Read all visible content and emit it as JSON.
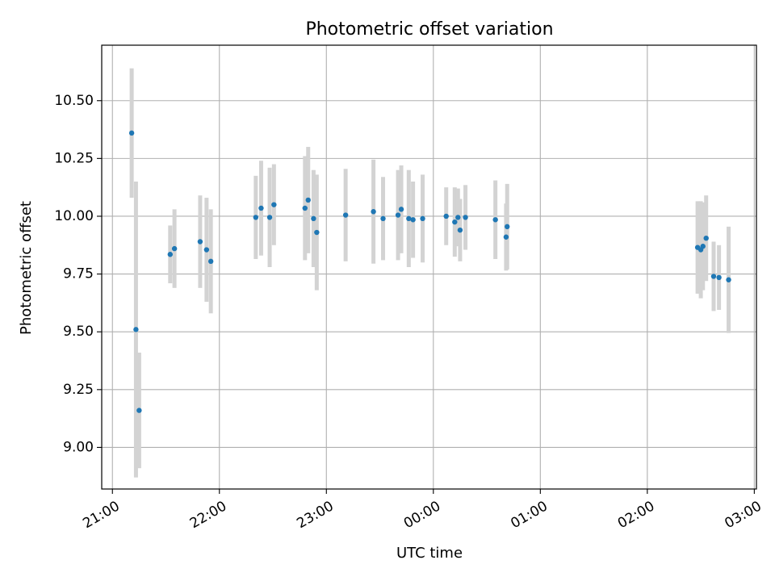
{
  "chart_data": {
    "type": "scatter",
    "title": "Photometric offset variation",
    "xlabel": "UTC time",
    "ylabel": "Photometric offset",
    "x_ticks": [
      "21:00",
      "22:00",
      "23:00",
      "00:00",
      "01:00",
      "02:00",
      "03:00"
    ],
    "x_tick_hours": [
      0,
      1,
      2,
      3,
      4,
      5,
      6
    ],
    "y_ticks": [
      "9.00",
      "9.25",
      "9.50",
      "9.75",
      "10.00",
      "10.25",
      "10.50"
    ],
    "xlim_hours_after_2100": [
      -0.1,
      6.02
    ],
    "ylim": [
      8.82,
      10.74
    ],
    "grid": true,
    "point_color": "#1f77b4",
    "errorbar_color": "#d3d3d3",
    "points": [
      {
        "t": 0.18,
        "y": 10.36,
        "err": 0.28
      },
      {
        "t": 0.22,
        "y": 9.51,
        "err": 0.64
      },
      {
        "t": 0.25,
        "y": 9.16,
        "err": 0.25
      },
      {
        "t": 0.54,
        "y": 9.835,
        "err": 0.125
      },
      {
        "t": 0.58,
        "y": 9.86,
        "err": 0.17
      },
      {
        "t": 0.82,
        "y": 9.89,
        "err": 0.2
      },
      {
        "t": 0.88,
        "y": 9.855,
        "err": 0.225
      },
      {
        "t": 0.92,
        "y": 9.805,
        "err": 0.225
      },
      {
        "t": 1.34,
        "y": 9.995,
        "err": 0.18
      },
      {
        "t": 1.39,
        "y": 10.035,
        "err": 0.205
      },
      {
        "t": 1.47,
        "y": 9.995,
        "err": 0.215
      },
      {
        "t": 1.51,
        "y": 10.05,
        "err": 0.175
      },
      {
        "t": 1.8,
        "y": 10.035,
        "err": 0.225
      },
      {
        "t": 1.83,
        "y": 10.07,
        "err": 0.23
      },
      {
        "t": 1.88,
        "y": 9.99,
        "err": 0.21
      },
      {
        "t": 1.91,
        "y": 9.93,
        "err": 0.25
      },
      {
        "t": 2.18,
        "y": 10.005,
        "err": 0.2
      },
      {
        "t": 2.44,
        "y": 10.02,
        "err": 0.225
      },
      {
        "t": 2.53,
        "y": 9.99,
        "err": 0.18
      },
      {
        "t": 2.67,
        "y": 10.005,
        "err": 0.195
      },
      {
        "t": 2.7,
        "y": 10.03,
        "err": 0.19
      },
      {
        "t": 2.77,
        "y": 9.99,
        "err": 0.21
      },
      {
        "t": 2.81,
        "y": 9.985,
        "err": 0.165
      },
      {
        "t": 2.9,
        "y": 9.99,
        "err": 0.19
      },
      {
        "t": 3.12,
        "y": 10.0,
        "err": 0.125
      },
      {
        "t": 3.2,
        "y": 9.975,
        "err": 0.15
      },
      {
        "t": 3.23,
        "y": 9.995,
        "err": 0.125
      },
      {
        "t": 3.25,
        "y": 9.94,
        "err": 0.135
      },
      {
        "t": 3.3,
        "y": 9.995,
        "err": 0.14
      },
      {
        "t": 3.58,
        "y": 9.985,
        "err": 0.17
      },
      {
        "t": 3.68,
        "y": 9.91,
        "err": 0.145
      },
      {
        "t": 3.69,
        "y": 9.955,
        "err": 0.185
      },
      {
        "t": 5.47,
        "y": 9.865,
        "err": 0.2
      },
      {
        "t": 5.5,
        "y": 9.855,
        "err": 0.21
      },
      {
        "t": 5.52,
        "y": 9.87,
        "err": 0.19
      },
      {
        "t": 5.55,
        "y": 9.905,
        "err": 0.185
      },
      {
        "t": 5.62,
        "y": 9.74,
        "err": 0.15
      },
      {
        "t": 5.67,
        "y": 9.735,
        "err": 0.14
      },
      {
        "t": 5.76,
        "y": 9.725,
        "err": 0.23
      }
    ]
  }
}
